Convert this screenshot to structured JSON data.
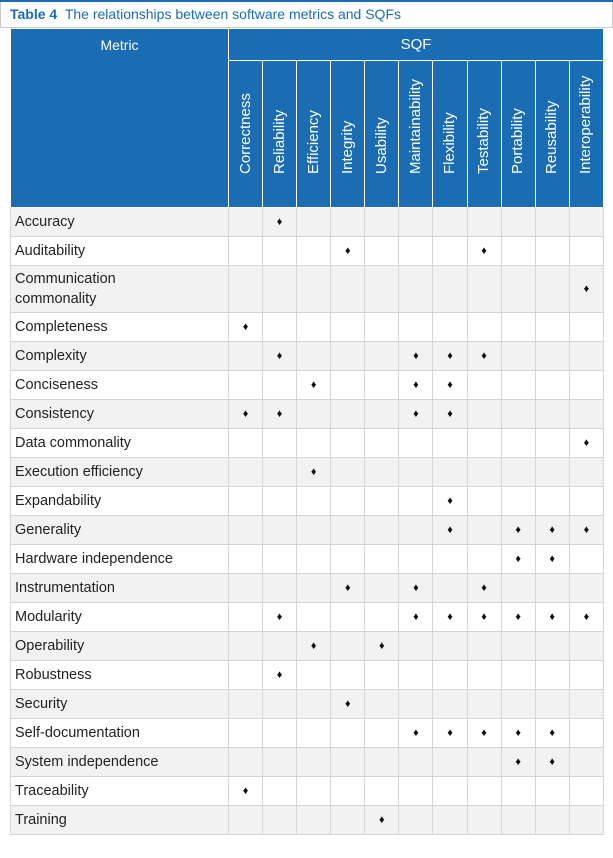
{
  "caption": {
    "label": "Table 4",
    "text": "The relationships between software metrics and SQFs"
  },
  "header": {
    "metric": "Metric",
    "sqf": "SQF",
    "factors": [
      "Correctness",
      "Reliability",
      "Efficiency",
      "Integrity",
      "Usability",
      "Maintainability",
      "Flexibility",
      "Testability",
      "Portability",
      "Reusability",
      "Interoperability"
    ]
  },
  "marker_symbol": "♦",
  "rows": [
    {
      "metric": "Accuracy",
      "marks": [
        "",
        "♦",
        "",
        "",
        "",
        "",
        "",
        "",
        "",
        "",
        ""
      ]
    },
    {
      "metric": "Auditability",
      "marks": [
        "",
        "",
        "",
        "♦",
        "",
        "",
        "",
        "♦",
        "",
        "",
        ""
      ]
    },
    {
      "metric": "Communication commonality",
      "marks": [
        "",
        "",
        "",
        "",
        "",
        "",
        "",
        "",
        "",
        "",
        "♦"
      ]
    },
    {
      "metric": "Completeness",
      "marks": [
        "♦",
        "",
        "",
        "",
        "",
        "",
        "",
        "",
        "",
        "",
        ""
      ]
    },
    {
      "metric": "Complexity",
      "marks": [
        "",
        "♦",
        "",
        "",
        "",
        "♦",
        "♦",
        "♦",
        "",
        "",
        ""
      ]
    },
    {
      "metric": "Conciseness",
      "marks": [
        "",
        "",
        "♦",
        "",
        "",
        "♦",
        "♦",
        "",
        "",
        "",
        ""
      ]
    },
    {
      "metric": "Consistency",
      "marks": [
        "♦",
        "♦",
        "",
        "",
        "",
        "♦",
        "♦",
        "",
        "",
        "",
        ""
      ]
    },
    {
      "metric": "Data commonality",
      "marks": [
        "",
        "",
        "",
        "",
        "",
        "",
        "",
        "",
        "",
        "",
        "♦"
      ]
    },
    {
      "metric": "Execution efficiency",
      "marks": [
        "",
        "",
        "♦",
        "",
        "",
        "",
        "",
        "",
        "",
        "",
        ""
      ]
    },
    {
      "metric": "Expandability",
      "marks": [
        "",
        "",
        "",
        "",
        "",
        "",
        "♦",
        "",
        "",
        "",
        ""
      ]
    },
    {
      "metric": "Generality",
      "marks": [
        "",
        "",
        "",
        "",
        "",
        "",
        "♦",
        "",
        "♦",
        "♦",
        "♦"
      ]
    },
    {
      "metric": "Hardware independence",
      "marks": [
        "",
        "",
        "",
        "",
        "",
        "",
        "",
        "",
        "♦",
        "♦",
        ""
      ]
    },
    {
      "metric": "Instrumentation",
      "marks": [
        "",
        "",
        "",
        "♦",
        "",
        "♦",
        "",
        "♦",
        "",
        "",
        ""
      ]
    },
    {
      "metric": "Modularity",
      "marks": [
        "",
        "♦",
        "",
        "",
        "",
        "♦",
        "♦",
        "♦",
        "♦",
        "♦",
        "♦"
      ]
    },
    {
      "metric": "Operability",
      "marks": [
        "",
        "",
        "♦",
        "",
        "♦",
        "",
        "",
        "",
        "",
        "",
        ""
      ]
    },
    {
      "metric": "Robustness",
      "marks": [
        "",
        "♦",
        "",
        "",
        "",
        "",
        "",
        "",
        "",
        "",
        ""
      ]
    },
    {
      "metric": "Security",
      "marks": [
        "",
        "",
        "",
        "♦",
        "",
        "",
        "",
        "",
        "",
        "",
        ""
      ]
    },
    {
      "metric": "Self-documentation",
      "marks": [
        "",
        "",
        "",
        "",
        "",
        "♦",
        "♦",
        "♦",
        "♦",
        "♦",
        ""
      ]
    },
    {
      "metric": "System independence",
      "marks": [
        "",
        "",
        "",
        "",
        "",
        "",
        "",
        "",
        "♦",
        "♦",
        ""
      ]
    },
    {
      "metric": "Traceability",
      "marks": [
        "♦",
        "",
        "",
        "",
        "",
        "",
        "",
        "",
        "",
        "",
        ""
      ]
    },
    {
      "metric": "Training",
      "marks": [
        "",
        "",
        "",
        "",
        "♦",
        "",
        "",
        "",
        "",
        "",
        ""
      ]
    }
  ]
}
